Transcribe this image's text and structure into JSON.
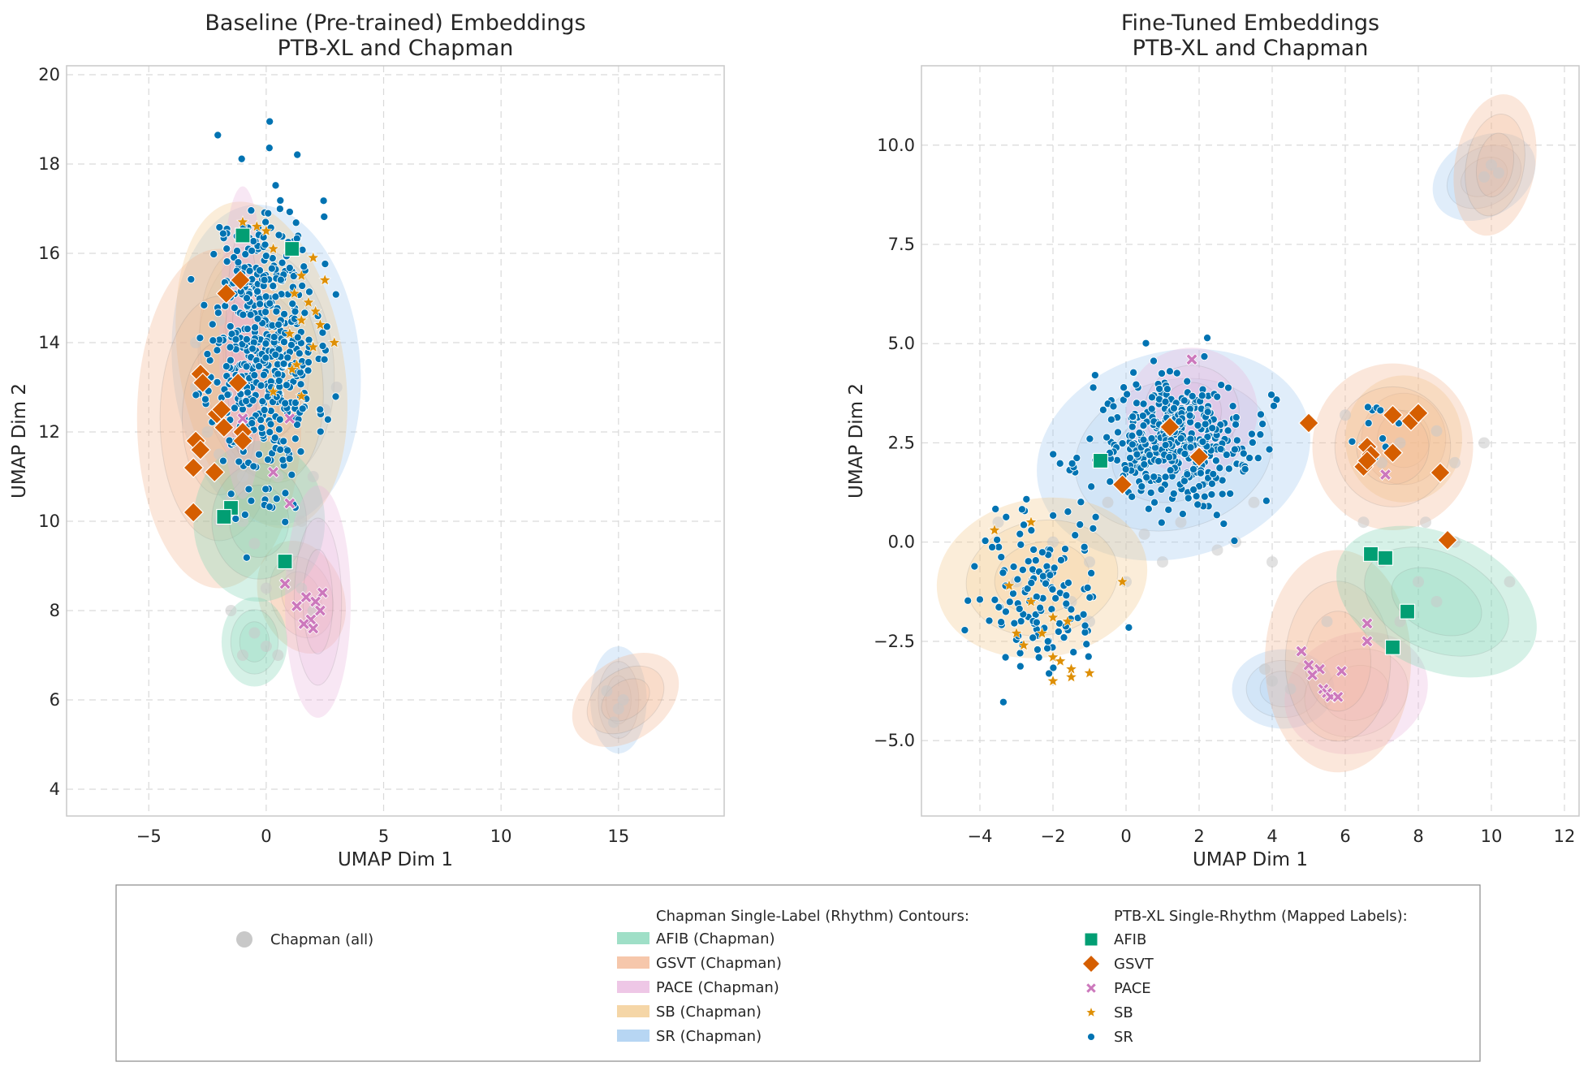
{
  "chart_data": [
    {
      "type": "scatter",
      "title": "Baseline (Pre-trained) Embeddings\nPTB-XL and Chapman",
      "xlabel": "UMAP Dim 1",
      "ylabel": "UMAP Dim 2",
      "xlim": [
        -8.5,
        19.5
      ],
      "ylim": [
        3.4,
        20.2
      ],
      "xticks": [
        -5,
        0,
        5,
        10,
        15
      ],
      "xtick_labels": [
        "−5",
        "0",
        "5",
        "10",
        "15"
      ],
      "yticks": [
        4,
        6,
        8,
        10,
        12,
        14,
        16,
        18,
        20
      ],
      "ytick_labels": [
        "4",
        "6",
        "8",
        "10",
        "12",
        "14",
        "16",
        "18",
        "20"
      ],
      "grid": true,
      "contours": [
        {
          "class": "SR",
          "cx": 0.0,
          "cy": 13.5,
          "rx": 4.0,
          "ry": 3.6,
          "rot": -5
        },
        {
          "class": "SR",
          "cx": 15.0,
          "cy": 6.0,
          "rx": 1.2,
          "ry": 1.2,
          "rot": 0
        },
        {
          "class": "SB",
          "cx": -0.2,
          "cy": 13.5,
          "rx": 3.5,
          "ry": 3.7,
          "rot": -10
        },
        {
          "class": "GSVT",
          "cx": -2.0,
          "cy": 12.3,
          "rx": 3.5,
          "ry": 3.8,
          "rot": 0
        },
        {
          "class": "GSVT",
          "cx": 15.3,
          "cy": 6.0,
          "rx": 2.5,
          "ry": 0.9,
          "rot": -35
        },
        {
          "class": "GSVT",
          "cx": 1.5,
          "cy": 8.3,
          "rx": 1.8,
          "ry": 1.3,
          "rot": -20
        },
        {
          "class": "AFIB",
          "cx": -0.3,
          "cy": 10.0,
          "rx": 2.8,
          "ry": 1.8,
          "rot": 0
        },
        {
          "class": "AFIB",
          "cx": -0.5,
          "cy": 7.3,
          "rx": 1.4,
          "ry": 1.0,
          "rot": 0
        },
        {
          "class": "PACE",
          "cx": 2.2,
          "cy": 8.2,
          "rx": 1.4,
          "ry": 2.6,
          "rot": 0
        },
        {
          "class": "PACE",
          "cx": -1.0,
          "cy": 14.0,
          "rx": 1.0,
          "ry": 3.5,
          "rot": 0
        }
      ],
      "chapman_gray": [
        [
          -3.0,
          13.0
        ],
        [
          -2.5,
          12.0
        ],
        [
          -2.0,
          11.5
        ],
        [
          -1.5,
          10.5
        ],
        [
          -1.0,
          10.0
        ],
        [
          -0.5,
          9.5
        ],
        [
          0.0,
          10.5
        ],
        [
          0.5,
          11.0
        ],
        [
          1.0,
          9.0
        ],
        [
          1.5,
          8.5
        ],
        [
          2.0,
          8.0
        ],
        [
          -0.5,
          7.5
        ],
        [
          -1.0,
          7.0
        ],
        [
          0.0,
          7.2
        ],
        [
          0.5,
          7.0
        ],
        [
          -2.0,
          10.0
        ],
        [
          -1.0,
          11.0
        ],
        [
          1.0,
          11.5
        ],
        [
          2.0,
          11.0
        ],
        [
          1.5,
          10.0
        ],
        [
          -3.0,
          14.0
        ],
        [
          -2.0,
          14.5
        ],
        [
          2.5,
          12.5
        ],
        [
          3.0,
          13.0
        ],
        [
          14.5,
          6.2
        ],
        [
          15.0,
          5.8
        ],
        [
          14.8,
          5.5
        ],
        [
          15.2,
          6.0
        ],
        [
          -1.5,
          8.0
        ],
        [
          0.0,
          8.5
        ]
      ],
      "ptbxl": {
        "AFIB": [
          [
            -1.0,
            16.4
          ],
          [
            1.1,
            16.1
          ],
          [
            -1.5,
            10.3
          ],
          [
            -1.8,
            10.1
          ],
          [
            0.8,
            9.1
          ]
        ],
        "GSVT": [
          [
            -1.1,
            15.4
          ],
          [
            -1.7,
            15.1
          ],
          [
            -2.8,
            13.3
          ],
          [
            -2.7,
            13.1
          ],
          [
            -1.2,
            13.1
          ],
          [
            -2.1,
            12.4
          ],
          [
            -1.9,
            12.5
          ],
          [
            -1.8,
            12.1
          ],
          [
            -1.0,
            12.0
          ],
          [
            -1.0,
            11.8
          ],
          [
            -3.0,
            11.8
          ],
          [
            -2.8,
            11.6
          ],
          [
            -3.1,
            11.2
          ],
          [
            -2.2,
            11.1
          ],
          [
            -3.1,
            10.2
          ]
        ],
        "PACE": [
          [
            -1.0,
            12.3
          ],
          [
            1.0,
            12.3
          ],
          [
            0.3,
            11.1
          ],
          [
            1.0,
            10.4
          ],
          [
            0.8,
            8.6
          ],
          [
            2.4,
            8.4
          ],
          [
            1.7,
            8.3
          ],
          [
            2.1,
            8.2
          ],
          [
            1.3,
            8.1
          ],
          [
            2.3,
            8.0
          ],
          [
            1.9,
            7.8
          ],
          [
            2.0,
            7.6
          ],
          [
            1.6,
            7.7
          ]
        ],
        "SB": [
          [
            -1.0,
            16.7
          ],
          [
            -0.4,
            16.6
          ],
          [
            0.0,
            16.5
          ],
          [
            0.3,
            16.1
          ],
          [
            2.0,
            15.9
          ],
          [
            1.5,
            15.5
          ],
          [
            2.5,
            15.4
          ],
          [
            1.2,
            15.1
          ],
          [
            1.8,
            14.9
          ],
          [
            2.1,
            14.7
          ],
          [
            1.5,
            14.5
          ],
          [
            2.3,
            14.4
          ],
          [
            1.0,
            14.2
          ],
          [
            2.9,
            14.0
          ],
          [
            2.0,
            13.9
          ],
          [
            1.3,
            13.5
          ],
          [
            1.1,
            13.4
          ],
          [
            0.3,
            12.9
          ],
          [
            1.5,
            12.8
          ]
        ]
      },
      "sr_cloud": {
        "cx": -0.1,
        "cy": 14.0,
        "sx": 1.1,
        "sy": 1.6,
        "count": 520,
        "seed": 11
      }
    },
    {
      "type": "scatter",
      "title": "Fine-Tuned Embeddings\nPTB-XL and Chapman",
      "xlabel": "UMAP Dim 1",
      "ylabel": "UMAP Dim 2",
      "xlim": [
        -5.6,
        12.4
      ],
      "ylim": [
        -6.9,
        12.0
      ],
      "xticks": [
        -4,
        -2,
        0,
        2,
        4,
        6,
        8,
        10,
        12
      ],
      "xtick_labels": [
        "−4",
        "−2",
        "0",
        "2",
        "4",
        "6",
        "8",
        "10",
        "12"
      ],
      "yticks": [
        -5.0,
        -2.5,
        0.0,
        2.5,
        5.0,
        7.5,
        10.0
      ],
      "ytick_labels": [
        "−5.0",
        "−2.5",
        "0.0",
        "2.5",
        "5.0",
        "7.5",
        "10.0"
      ],
      "grid": true,
      "contours": [
        {
          "class": "SR",
          "cx": 1.3,
          "cy": 2.2,
          "rx": 3.8,
          "ry": 2.6,
          "rot": -15
        },
        {
          "class": "SR",
          "cx": 9.8,
          "cy": 9.2,
          "rx": 1.5,
          "ry": 1.0,
          "rot": -30
        },
        {
          "class": "SR",
          "cx": 4.3,
          "cy": -3.7,
          "rx": 1.4,
          "ry": 1.0,
          "rot": 0
        },
        {
          "class": "PACE",
          "cx": 1.8,
          "cy": 3.3,
          "rx": 1.8,
          "ry": 1.6,
          "rot": 0
        },
        {
          "class": "PACE",
          "cx": 6.3,
          "cy": -3.8,
          "rx": 2.0,
          "ry": 1.5,
          "rot": -20
        },
        {
          "class": "SB",
          "cx": -2.3,
          "cy": -0.9,
          "rx": 2.9,
          "ry": 2.0,
          "rot": -10
        },
        {
          "class": "SB",
          "cx": 7.6,
          "cy": 2.6,
          "rx": 1.6,
          "ry": 1.6,
          "rot": 0
        },
        {
          "class": "GSVT",
          "cx": 7.3,
          "cy": 2.4,
          "rx": 2.2,
          "ry": 2.1,
          "rot": 0
        },
        {
          "class": "GSVT",
          "cx": 10.1,
          "cy": 9.5,
          "rx": 1.1,
          "ry": 1.8,
          "rot": 10
        },
        {
          "class": "GSVT",
          "cx": 5.8,
          "cy": -3.0,
          "rx": 2.0,
          "ry": 2.8,
          "rot": 0
        },
        {
          "class": "AFIB",
          "cx": 8.5,
          "cy": -1.5,
          "rx": 2.9,
          "ry": 1.7,
          "rot": 25
        }
      ],
      "chapman_gray": [
        [
          -3.5,
          0.5
        ],
        [
          -3.0,
          -1.0
        ],
        [
          -2.5,
          -2.0
        ],
        [
          -2.0,
          0.0
        ],
        [
          -1.5,
          -1.5
        ],
        [
          -1.0,
          -2.0
        ],
        [
          0.0,
          -1.0
        ],
        [
          0.5,
          0.2
        ],
        [
          1.0,
          -0.5
        ],
        [
          1.5,
          0.5
        ],
        [
          2.0,
          1.0
        ],
        [
          3.0,
          0.0
        ],
        [
          4.0,
          -0.5
        ],
        [
          2.5,
          -0.2
        ],
        [
          4.0,
          -3.5
        ],
        [
          4.5,
          -3.7
        ],
        [
          3.8,
          -3.2
        ],
        [
          6.5,
          0.5
        ],
        [
          7.0,
          -0.5
        ],
        [
          8.0,
          -1.0
        ],
        [
          8.5,
          -1.5
        ],
        [
          9.0,
          0.0
        ],
        [
          7.5,
          -2.0
        ],
        [
          10.5,
          -1.0
        ],
        [
          7.0,
          2.0
        ],
        [
          7.5,
          2.5
        ],
        [
          8.5,
          2.8
        ],
        [
          9.0,
          2.0
        ],
        [
          10.0,
          9.5
        ],
        [
          10.2,
          9.3
        ],
        [
          9.8,
          9.2
        ],
        [
          5.0,
          3.0
        ],
        [
          6.0,
          3.2
        ],
        [
          -0.5,
          1.0
        ],
        [
          1.0,
          1.5
        ],
        [
          -1.0,
          -0.5
        ],
        [
          3.5,
          1.0
        ],
        [
          5.5,
          -2.0
        ],
        [
          9.8,
          2.5
        ],
        [
          8.2,
          0.5
        ]
      ],
      "ptbxl": {
        "AFIB": [
          [
            -0.7,
            2.05
          ],
          [
            6.7,
            -0.3
          ],
          [
            7.1,
            -0.4
          ],
          [
            7.7,
            -1.75
          ],
          [
            7.3,
            -2.65
          ]
        ],
        "GSVT": [
          [
            1.2,
            2.9
          ],
          [
            2.0,
            2.15
          ],
          [
            -0.1,
            1.45
          ],
          [
            5.0,
            3.0
          ],
          [
            6.6,
            2.4
          ],
          [
            6.7,
            2.2
          ],
          [
            6.5,
            1.9
          ],
          [
            6.6,
            2.05
          ],
          [
            7.3,
            3.2
          ],
          [
            7.8,
            3.05
          ],
          [
            8.0,
            3.25
          ],
          [
            7.3,
            2.25
          ],
          [
            8.6,
            1.75
          ],
          [
            8.8,
            0.05
          ]
        ],
        "PACE": [
          [
            1.8,
            4.6
          ],
          [
            7.1,
            1.7
          ],
          [
            6.6,
            -2.05
          ],
          [
            6.6,
            -2.5
          ],
          [
            4.8,
            -2.75
          ],
          [
            5.0,
            -3.1
          ],
          [
            5.3,
            -3.2
          ],
          [
            5.1,
            -3.35
          ],
          [
            5.9,
            -3.25
          ],
          [
            5.4,
            -3.7
          ],
          [
            5.5,
            -3.8
          ],
          [
            5.6,
            -3.9
          ],
          [
            5.8,
            -3.9
          ]
        ],
        "SB": [
          [
            -3.6,
            0.3
          ],
          [
            -2.6,
            0.5
          ],
          [
            -3.2,
            -1.1
          ],
          [
            -2.6,
            -1.5
          ],
          [
            -2.0,
            -1.9
          ],
          [
            -1.6,
            -2.0
          ],
          [
            -3.0,
            -2.3
          ],
          [
            -2.3,
            -2.3
          ],
          [
            -2.8,
            -2.6
          ],
          [
            -2.0,
            -2.9
          ],
          [
            -1.8,
            -3.0
          ],
          [
            -1.5,
            -3.2
          ],
          [
            -2.0,
            -3.5
          ],
          [
            -1.5,
            -3.4
          ],
          [
            -0.1,
            -1.0
          ],
          [
            -1.0,
            -3.3
          ]
        ]
      },
      "sr_clouds": [
        {
          "cx": 1.4,
          "cy": 2.5,
          "sx": 1.1,
          "sy": 0.8,
          "count": 420,
          "seed": 21
        },
        {
          "cx": -2.4,
          "cy": -1.3,
          "sx": 0.9,
          "sy": 1.1,
          "count": 140,
          "seed": 31
        },
        {
          "cx": 6.8,
          "cy": 2.9,
          "sx": 0.4,
          "sy": 0.5,
          "count": 12,
          "seed": 41
        }
      ]
    }
  ],
  "legend": {
    "chapman_all": "Chapman (all)",
    "contours_title": "Chapman Single-Label (Rhythm) Contours:",
    "contours": [
      {
        "key": "AFIB",
        "label": "AFIB (Chapman)"
      },
      {
        "key": "GSVT",
        "label": "GSVT (Chapman)"
      },
      {
        "key": "PACE",
        "label": "PACE (Chapman)"
      },
      {
        "key": "SB",
        "label": "SB (Chapman)"
      },
      {
        "key": "SR",
        "label": "SR (Chapman)"
      }
    ],
    "ptbxl_title": "PTB-XL Single-Rhythm (Mapped Labels):",
    "ptbxl": [
      {
        "key": "AFIB",
        "label": "AFIB",
        "marker": "square"
      },
      {
        "key": "GSVT",
        "label": "GSVT",
        "marker": "diamond"
      },
      {
        "key": "PACE",
        "label": "PACE",
        "marker": "x"
      },
      {
        "key": "SB",
        "label": "SB",
        "marker": "star"
      },
      {
        "key": "SR",
        "label": "SR",
        "marker": "circle"
      }
    ]
  },
  "colors": {
    "AFIB": "#029e73",
    "GSVT": "#d55e00",
    "PACE": "#cc78bc",
    "SB": "#de8f05",
    "SR": "#0173b2",
    "chapman_gray": "#c8c8c8",
    "contour_AFIB": "#7fd4b4",
    "contour_GSVT": "#f3b48f",
    "contour_PACE": "#e8b4de",
    "contour_SB": "#f2c88a",
    "contour_SR": "#9fc8ef"
  }
}
